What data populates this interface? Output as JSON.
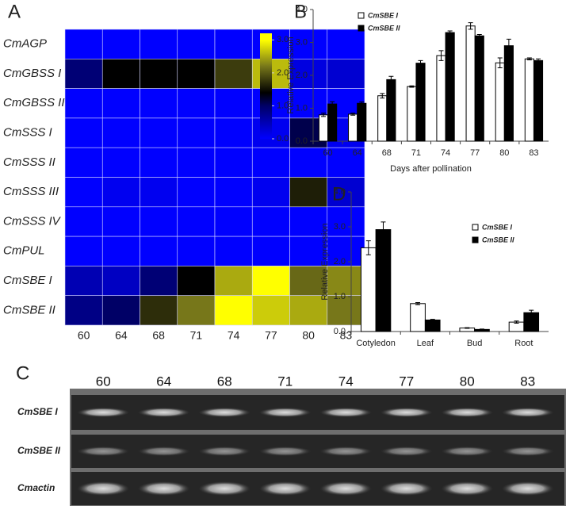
{
  "chart_data": [
    {
      "type": "heatmap",
      "panel_label": "A",
      "rows": [
        "CmAGP",
        "CmGBSS I",
        "CmGBSS II",
        "CmSSS I",
        "CmSSS II",
        "CmSSS III",
        "CmSSS IV",
        "CmPUL",
        "CmSBE I",
        "CmSBE II"
      ],
      "categories": [
        "60",
        "64",
        "68",
        "71",
        "74",
        "77",
        "80",
        "83"
      ],
      "values": [
        [
          0,
          0,
          0,
          0,
          0,
          0,
          0,
          0
        ],
        [
          0.9,
          1.4,
          1.4,
          1.4,
          1.8,
          2.6,
          0.2,
          0.3
        ],
        [
          0,
          0,
          0,
          0,
          0,
          0,
          0,
          0
        ],
        [
          0,
          0,
          0,
          0,
          0,
          0.1,
          1.1,
          0.1
        ],
        [
          0,
          0,
          0,
          0,
          0,
          0,
          0,
          0
        ],
        [
          0,
          0.1,
          0.1,
          0,
          0,
          0.1,
          1.6,
          0.3
        ],
        [
          0,
          0,
          0,
          0,
          0,
          0,
          0,
          0
        ],
        [
          0,
          0,
          0,
          0,
          0,
          0,
          0,
          0
        ],
        [
          0.5,
          0.4,
          0.9,
          1.4,
          2.5,
          3.0,
          2.1,
          2.3
        ],
        [
          0.8,
          1.0,
          1.7,
          2.2,
          3.0,
          2.7,
          2.5,
          2.2
        ]
      ],
      "colorscale": [
        [
          0,
          "#0000ff"
        ],
        [
          1,
          "#000066"
        ],
        [
          1.4,
          "#000000"
        ],
        [
          2.2,
          "#77771a"
        ],
        [
          3,
          "#ffff00"
        ]
      ],
      "zlim": [
        0,
        3.2
      ],
      "zticks": [
        {
          "value": 3,
          "label": "3.0"
        },
        {
          "value": 2,
          "label": "2.0"
        },
        {
          "value": 1,
          "label": "1.0"
        },
        {
          "value": 0,
          "label": "0.0"
        }
      ]
    },
    {
      "type": "bar",
      "panel_label": "B",
      "x_label": "Days after pollination",
      "y_label": "Relative Expression",
      "categories": [
        "60",
        "64",
        "68",
        "71",
        "74",
        "77",
        "80",
        "83"
      ],
      "series": [
        {
          "name": "CmSBE I",
          "color": "#ffffff",
          "values": [
            0.8,
            0.82,
            1.38,
            1.66,
            2.6,
            3.5,
            2.38,
            2.5
          ],
          "errors": [
            0.05,
            0.03,
            0.07,
            0.02,
            0.15,
            0.1,
            0.15,
            0.03
          ]
        },
        {
          "name": "CmSBE II",
          "color": "#000000",
          "values": [
            1.13,
            1.15,
            1.87,
            2.37,
            3.3,
            3.2,
            2.9,
            2.45
          ],
          "errors": [
            0.07,
            0.04,
            0.1,
            0.08,
            0.05,
            0.04,
            0.2,
            0.05
          ]
        }
      ],
      "ylim": [
        0,
        4
      ],
      "yticks": [
        {
          "value": 0,
          "label": "0.0"
        },
        {
          "value": 1,
          "label": "1.0"
        },
        {
          "value": 2,
          "label": "2.0"
        },
        {
          "value": 3,
          "label": "3.0"
        },
        {
          "value": 4,
          "label": "4.0"
        }
      ]
    },
    {
      "type": "bar",
      "panel_label": "D",
      "y_label": "Relative Expression",
      "categories": [
        "Cotyledon",
        "Leaf",
        "Bud",
        "Root"
      ],
      "series": [
        {
          "name": "CmSBE I",
          "color": "#ffffff",
          "values": [
            2.4,
            0.8,
            0.1,
            0.27
          ],
          "errors": [
            0.2,
            0.03,
            0.01,
            0.03
          ]
        },
        {
          "name": "CmSBE II",
          "color": "#000000",
          "values": [
            2.92,
            0.33,
            0.06,
            0.54
          ],
          "errors": [
            0.22,
            0.02,
            0.01,
            0.07
          ]
        }
      ],
      "ylim": [
        0,
        4
      ],
      "yticks": [
        {
          "value": 0,
          "label": "0.0"
        },
        {
          "value": 1,
          "label": "1.0"
        },
        {
          "value": 2,
          "label": "2.0"
        },
        {
          "value": 3,
          "label": "3.0"
        },
        {
          "value": 4,
          "label": "4.0"
        }
      ]
    }
  ],
  "gel": {
    "panel_label": "C",
    "lanes": [
      "60",
      "64",
      "68",
      "71",
      "74",
      "77",
      "80",
      "83"
    ],
    "rows": [
      "CmSBE I",
      "CmSBE II",
      "Cmactin"
    ]
  }
}
